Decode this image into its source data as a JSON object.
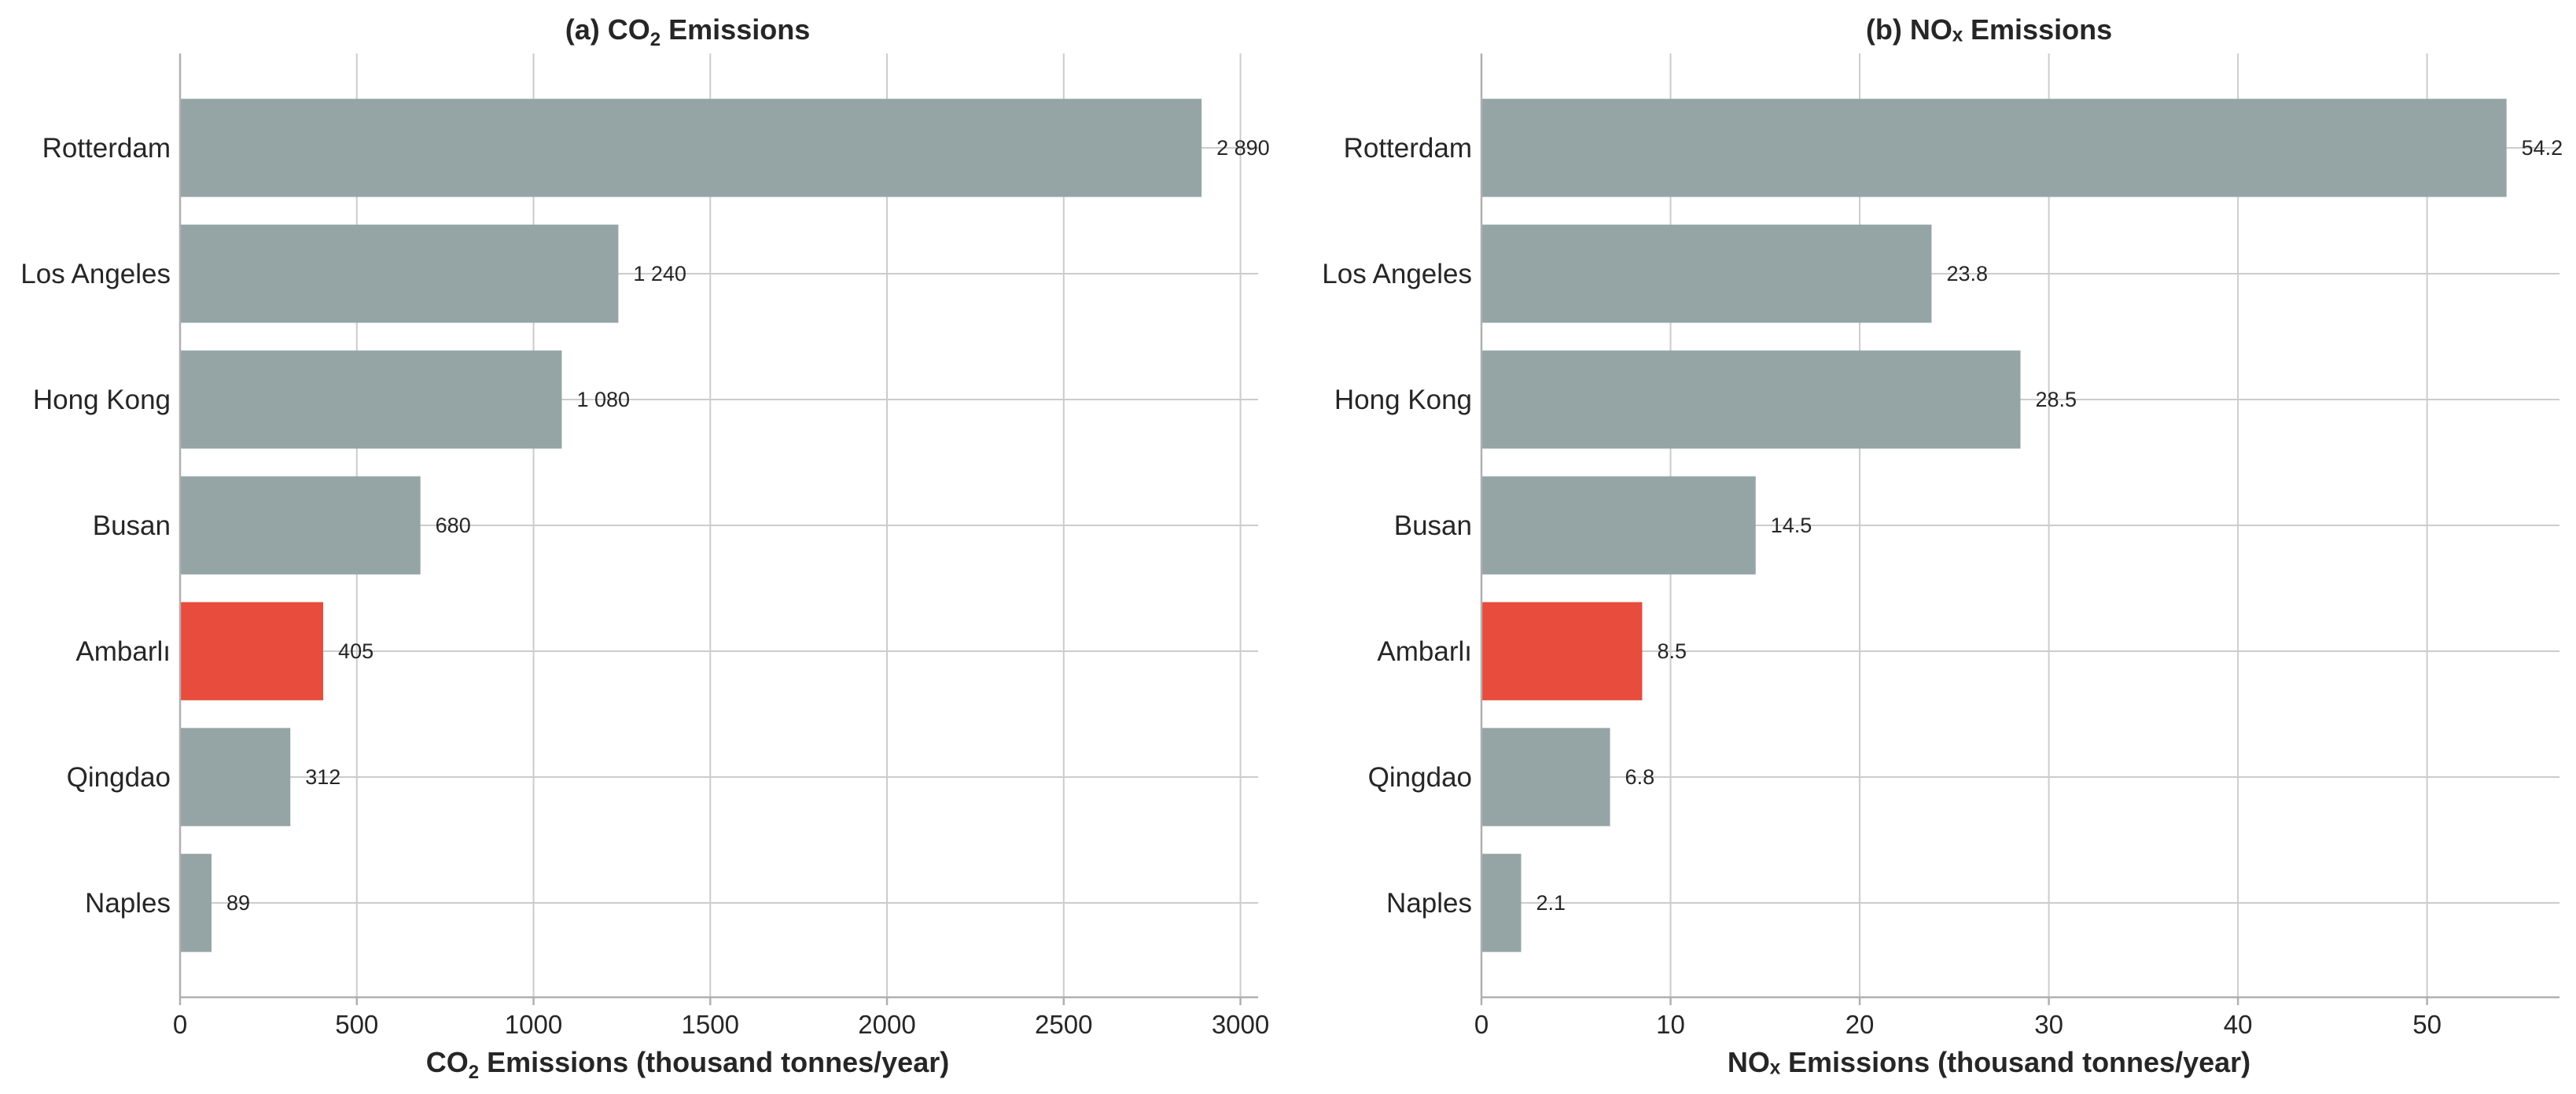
{
  "colors": {
    "bar": "#95a5a6",
    "highlight": "#e74c3c"
  },
  "chart_data": [
    {
      "type": "bar",
      "orientation": "horizontal",
      "title": {
        "prefix": "(a) CO",
        "sub": "2",
        "suffix": "  Emissions"
      },
      "xlabel": {
        "prefix": "CO",
        "sub": "2",
        "suffix": "  Emissions (thousand tonnes/year)"
      },
      "categories": [
        "Rotterdam",
        "Los Angeles",
        "Hong Kong",
        "Busan",
        "Ambarlı",
        "Qingdao",
        "Naples"
      ],
      "values": [
        2890,
        1240,
        1080,
        680,
        405,
        312,
        89
      ],
      "value_labels": [
        "2 890",
        "1 240",
        "1 080",
        "680",
        "405",
        "312",
        "89"
      ],
      "highlight": "Ambarlı",
      "xlim": [
        0,
        3050
      ],
      "xticks": [
        0,
        500,
        1000,
        1500,
        2000,
        2500,
        3000
      ],
      "xtick_labels": [
        "0",
        "500",
        "1000",
        "1500",
        "2000",
        "2500",
        "3000"
      ],
      "grid": true
    },
    {
      "type": "bar",
      "orientation": "horizontal",
      "title": {
        "prefix": "(b) NOₓ Emissions",
        "sub": "",
        "suffix": ""
      },
      "xlabel": {
        "prefix": "NOₓ Emissions (thousand tonnes/year)",
        "sub": "",
        "suffix": ""
      },
      "categories": [
        "Rotterdam",
        "Los Angeles",
        "Hong Kong",
        "Busan",
        "Ambarlı",
        "Qingdao",
        "Naples"
      ],
      "values": [
        54.2,
        23.8,
        28.5,
        14.5,
        8.5,
        6.8,
        2.1
      ],
      "value_labels": [
        "54.2",
        "23.8",
        "28.5",
        "14.5",
        "8.5",
        "6.8",
        "2.1"
      ],
      "highlight": "Ambarlı",
      "xlim": [
        0,
        57
      ],
      "xticks": [
        0,
        10,
        20,
        30,
        40,
        50
      ],
      "xtick_labels": [
        "0",
        "10",
        "20",
        "30",
        "40",
        "50"
      ],
      "grid": true
    }
  ]
}
